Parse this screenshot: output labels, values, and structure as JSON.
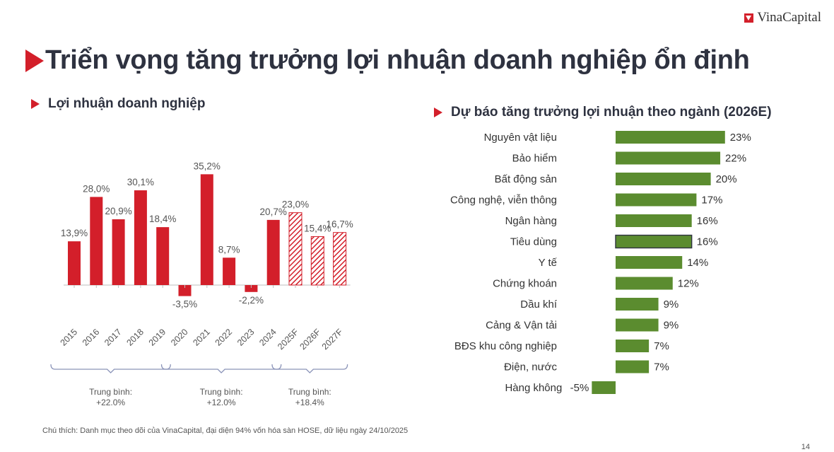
{
  "logo": {
    "text": "VinaCapital"
  },
  "title": "Triển vọng tăng trưởng lợi nhuận doanh nghiệp ổn định",
  "left_subtitle": "Lợi nhuận doanh nghiệp",
  "right_subtitle": "Dự báo tăng trưởng lợi nhuận theo ngành (2026E)",
  "footnote": "Chú thích: Danh mục theo dõi của VinaCapital, đại diện 94% vốn hóa sàn HOSE, dữ liệu ngày 24/10/2025",
  "page_number": "14",
  "colors": {
    "red": "#d31f2a",
    "green": "#5b8c2f",
    "dark": "#2e3240",
    "bracket": "#8a93b8"
  },
  "chart_data": [
    {
      "type": "bar",
      "categories": [
        "2015",
        "2016",
        "2017",
        "2018",
        "2019",
        "2020",
        "2021",
        "2022",
        "2023",
        "2024",
        "2025F",
        "2026F",
        "2027F"
      ],
      "values": [
        13.9,
        28.0,
        20.9,
        30.1,
        18.4,
        -3.5,
        35.2,
        8.7,
        -2.2,
        20.7,
        23.0,
        15.4,
        16.7
      ],
      "value_labels": [
        "13,9%",
        "28,0%",
        "20,9%",
        "30,1%",
        "18,4%",
        "-3,5%",
        "35,2%",
        "8,7%",
        "-2,2%",
        "20,7%",
        "23,0%",
        "15,4%",
        "16,7%"
      ],
      "forecast": [
        false,
        false,
        false,
        false,
        false,
        false,
        false,
        false,
        false,
        false,
        true,
        true,
        true
      ],
      "ylim": [
        -5,
        40
      ],
      "groups": [
        {
          "label": "Trung bình:",
          "value": "+22.0%",
          "from": 0,
          "to": 4
        },
        {
          "label": "Trung bình:",
          "value": "+12.0%",
          "from": 5,
          "to": 9
        },
        {
          "label": "Trung bình:",
          "value": "+18.4%",
          "from": 10,
          "to": 12
        }
      ]
    },
    {
      "type": "bar",
      "orientation": "horizontal",
      "categories": [
        "Nguyên vật liệu",
        "Bảo hiểm",
        "Bất động sản",
        "Công nghệ, viễn thông",
        "Ngân hàng",
        "Tiêu dùng",
        "Y tế",
        "Chứng khoán",
        "Dầu khí",
        "Cảng & Vận tải",
        "BĐS khu công nghiệp",
        "Điện, nước",
        "Hàng không"
      ],
      "values": [
        23,
        22,
        20,
        17,
        16,
        16,
        14,
        12,
        9,
        9,
        7,
        7,
        -5
      ],
      "value_labels": [
        "23%",
        "22%",
        "20%",
        "17%",
        "16%",
        "16%",
        "14%",
        "12%",
        "9%",
        "9%",
        "7%",
        "7%",
        "-5%"
      ],
      "xlim": [
        -5,
        25
      ]
    }
  ]
}
